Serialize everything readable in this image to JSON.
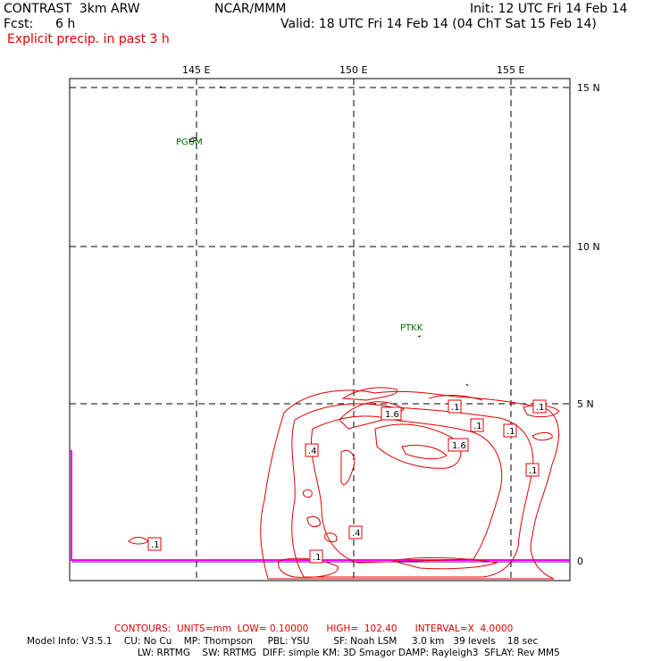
{
  "header": {
    "model": "CONTRAST  3km ARW",
    "org": "NCAR/MMM",
    "init": "Init: 12 UTC Fri 14 Feb 14",
    "fcst_label": "Fcst:",
    "fcst_value": "6 h",
    "valid": "Valid: 18 UTC Fri 14 Feb 14 (04 ChT Sat 15 Feb 14)",
    "field": "Explicit precip. in past 3 h"
  },
  "map": {
    "lon_labels": [
      "145 E",
      "150 E",
      "155 E"
    ],
    "lat_labels": [
      "15 N",
      "10 N",
      "5 N",
      "0"
    ],
    "stations": [
      "PGUM",
      "PTKK"
    ],
    "contour_labels": [
      "1.6",
      ".1",
      ".1",
      ".1",
      ".1",
      "1.6",
      ".1",
      ".4",
      ".1",
      ".4",
      ".1",
      ".1"
    ]
  },
  "footer": {
    "contours": "CONTOURS:  UNITS=mm  LOW= 0.10000      HIGH=  102.40      INTERVAL=X  4.0000",
    "model_info_1": "Model Info: V3.5.1    CU: No Cu    MP: Thompson     PBL: YSU        SF: Noah LSM     3.0 km   39 levels    18 sec",
    "model_info_2": "LW: RRTMG    SW: RRTMG  DIFF: simple KM: 3D Smagor DAMP: Rayleigh3  SFLAY: Rev MM5"
  },
  "colors": {
    "contour": "#e00000",
    "station": "#007000",
    "boundary": "#ff00ff",
    "equator": "#4000c0"
  }
}
